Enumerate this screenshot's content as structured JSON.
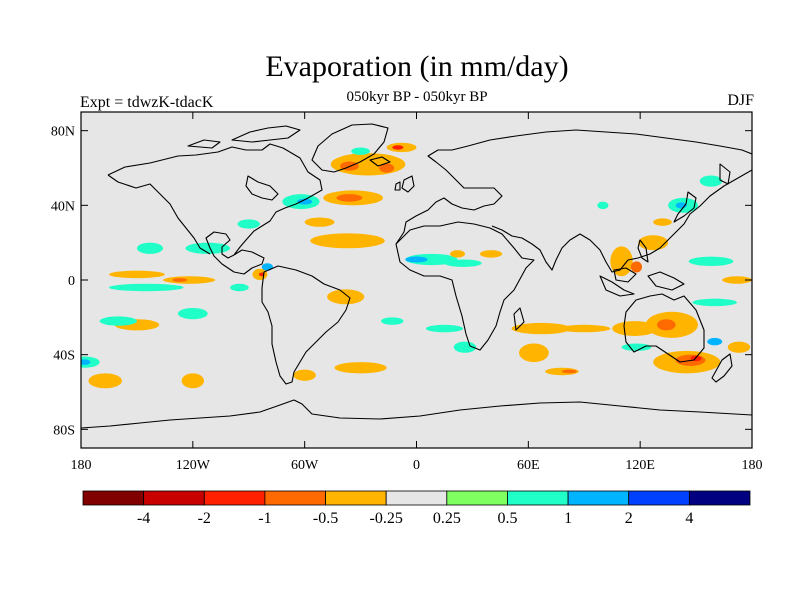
{
  "figure": {
    "title": "Evaporation (in mm/day)",
    "subtitle": "050kyr BP - 050kyr BP",
    "left_label": "Expt = tdwzK-tdacK",
    "right_label": "DJF",
    "background_color": "#e6e6e6"
  },
  "chart_data": {
    "type": "heatmap",
    "projection": "cylindrical-equidistant",
    "xlim": [
      -180,
      180
    ],
    "ylim": [
      -90,
      90
    ],
    "x_ticks": [
      {
        "value": -180,
        "label": "180"
      },
      {
        "value": -120,
        "label": "120W"
      },
      {
        "value": -60,
        "label": "60W"
      },
      {
        "value": 0,
        "label": "0"
      },
      {
        "value": 60,
        "label": "60E"
      },
      {
        "value": 120,
        "label": "120E"
      },
      {
        "value": 180,
        "label": "180"
      }
    ],
    "y_ticks": [
      {
        "value": 80,
        "label": "80N"
      },
      {
        "value": 40,
        "label": "40N"
      },
      {
        "value": 0,
        "label": "0"
      },
      {
        "value": -40,
        "label": "40S"
      },
      {
        "value": -80,
        "label": "80S"
      }
    ],
    "colorbar": {
      "colors": [
        "#800000",
        "#c80000",
        "#ff2000",
        "#ff6a00",
        "#ffb400",
        "#e6e6e6",
        "#80ff60",
        "#20ffc8",
        "#00b4ff",
        "#0040ff",
        "#000080"
      ],
      "labels": [
        {
          "boundary": 1,
          "label": "-4"
        },
        {
          "boundary": 2,
          "label": "-2"
        },
        {
          "boundary": 3,
          "label": "-1"
        },
        {
          "boundary": 4,
          "label": "-0.5"
        },
        {
          "boundary": 5,
          "label": "-0.25"
        },
        {
          "boundary": 6,
          "label": "0.25"
        },
        {
          "boundary": 7,
          "label": "0.5"
        },
        {
          "boundary": 8,
          "label": "1"
        },
        {
          "boundary": 9,
          "label": "2"
        },
        {
          "boundary": 10,
          "label": "4"
        }
      ]
    },
    "anomaly_regions": [
      {
        "lon": -26,
        "lat": 62,
        "rlon": 20,
        "rlat": 6,
        "level": 4
      },
      {
        "lon": -36,
        "lat": 61,
        "rlon": 5,
        "rlat": 2.5,
        "level": 3
      },
      {
        "lon": -16,
        "lat": 60,
        "rlon": 4,
        "rlat": 2.5,
        "level": 3
      },
      {
        "lon": -8,
        "lat": 71,
        "rlon": 8,
        "rlat": 2.5,
        "level": 4
      },
      {
        "lon": -10,
        "lat": 71,
        "rlon": 3,
        "rlat": 1.2,
        "level": 2
      },
      {
        "lon": -30,
        "lat": 69,
        "rlon": 5,
        "rlat": 2,
        "level": 7
      },
      {
        "lon": -34,
        "lat": 44,
        "rlon": 16,
        "rlat": 4,
        "level": 4
      },
      {
        "lon": -36,
        "lat": 44,
        "rlon": 7,
        "rlat": 2,
        "level": 3
      },
      {
        "lon": -62,
        "lat": 42,
        "rlon": 10,
        "rlat": 4,
        "level": 7
      },
      {
        "lon": -60,
        "lat": 42,
        "rlon": 4,
        "rlat": 1.6,
        "level": 8
      },
      {
        "lon": -37,
        "lat": 21,
        "rlon": 20,
        "rlat": 4,
        "level": 4
      },
      {
        "lon": -52,
        "lat": 31,
        "rlon": 8,
        "rlat": 2.5,
        "level": 4
      },
      {
        "lon": -90,
        "lat": 30,
        "rlon": 6,
        "rlat": 2.5,
        "level": 7
      },
      {
        "lon": 8,
        "lat": 11,
        "rlon": 14,
        "rlat": 3,
        "level": 7
      },
      {
        "lon": 0,
        "lat": 11,
        "rlon": 6,
        "rlat": 1.6,
        "level": 8
      },
      {
        "lon": 25,
        "lat": 9,
        "rlon": 10,
        "rlat": 2,
        "level": 7
      },
      {
        "lon": 22,
        "lat": 14,
        "rlon": 4,
        "rlat": 2,
        "level": 4
      },
      {
        "lon": 40,
        "lat": 14,
        "rlon": 6,
        "rlat": 2,
        "level": 4
      },
      {
        "lon": -112,
        "lat": 17,
        "rlon": 12,
        "rlat": 3,
        "level": 7
      },
      {
        "lon": -143,
        "lat": 17,
        "rlon": 7,
        "rlat": 3,
        "level": 7
      },
      {
        "lon": -150,
        "lat": 3,
        "rlon": 15,
        "rlat": 2,
        "level": 4
      },
      {
        "lon": -122,
        "lat": 0,
        "rlon": 14,
        "rlat": 2,
        "level": 4
      },
      {
        "lon": -127,
        "lat": 0,
        "rlon": 4,
        "rlat": 1,
        "level": 3
      },
      {
        "lon": -145,
        "lat": -4,
        "rlon": 20,
        "rlat": 2,
        "level": 7
      },
      {
        "lon": -95,
        "lat": -4,
        "rlon": 5,
        "rlat": 2,
        "level": 7
      },
      {
        "lon": -84,
        "lat": 3,
        "rlon": 4,
        "rlat": 3,
        "level": 4
      },
      {
        "lon": -83,
        "lat": 3,
        "rlon": 1.5,
        "rlat": 1,
        "level": 2
      },
      {
        "lon": -80,
        "lat": 7,
        "rlon": 3,
        "rlat": 2,
        "level": 8
      },
      {
        "lon": -38,
        "lat": -9,
        "rlon": 10,
        "rlat": 4,
        "level": 4
      },
      {
        "lon": -150,
        "lat": -24,
        "rlon": 12,
        "rlat": 3,
        "level": 4
      },
      {
        "lon": -120,
        "lat": -18,
        "rlon": 8,
        "rlat": 3,
        "level": 7
      },
      {
        "lon": -160,
        "lat": -22,
        "rlon": 10,
        "rlat": 2.5,
        "level": 7
      },
      {
        "lon": -178,
        "lat": -44,
        "rlon": 8,
        "rlat": 3,
        "level": 7
      },
      {
        "lon": -178,
        "lat": -44,
        "rlon": 3,
        "rlat": 1.5,
        "level": 8
      },
      {
        "lon": -167,
        "lat": -54,
        "rlon": 9,
        "rlat": 4,
        "level": 4
      },
      {
        "lon": -120,
        "lat": -54,
        "rlon": 6,
        "rlat": 4,
        "level": 4
      },
      {
        "lon": -30,
        "lat": -47,
        "rlon": 14,
        "rlat": 3,
        "level": 4
      },
      {
        "lon": -60,
        "lat": -51,
        "rlon": 6,
        "rlat": 3,
        "level": 4
      },
      {
        "lon": -13,
        "lat": -22,
        "rlon": 6,
        "rlat": 2,
        "level": 7
      },
      {
        "lon": 15,
        "lat": -26,
        "rlon": 10,
        "rlat": 2,
        "level": 7
      },
      {
        "lon": 67,
        "lat": -26,
        "rlon": 16,
        "rlat": 3,
        "level": 4
      },
      {
        "lon": 90,
        "lat": -26,
        "rlon": 14,
        "rlat": 2,
        "level": 4
      },
      {
        "lon": 117,
        "lat": -26,
        "rlon": 12,
        "rlat": 4,
        "level": 4
      },
      {
        "lon": 137,
        "lat": -24,
        "rlon": 14,
        "rlat": 7,
        "level": 4
      },
      {
        "lon": 134,
        "lat": -24,
        "rlon": 5,
        "rlat": 3,
        "level": 3
      },
      {
        "lon": 145,
        "lat": -44,
        "rlon": 18,
        "rlat": 6,
        "level": 4
      },
      {
        "lon": 147,
        "lat": -43,
        "rlon": 8,
        "rlat": 3,
        "level": 3
      },
      {
        "lon": 150,
        "lat": -42,
        "rlon": 3,
        "rlat": 1.5,
        "level": 2
      },
      {
        "lon": 118,
        "lat": -36,
        "rlon": 8,
        "rlat": 2,
        "level": 7
      },
      {
        "lon": 160,
        "lat": -33,
        "rlon": 4,
        "rlat": 2,
        "level": 8
      },
      {
        "lon": 63,
        "lat": -39,
        "rlon": 8,
        "rlat": 5,
        "level": 4
      },
      {
        "lon": 78,
        "lat": -49,
        "rlon": 9,
        "rlat": 2,
        "level": 4
      },
      {
        "lon": 82,
        "lat": -49,
        "rlon": 4,
        "rlat": 1,
        "level": 3
      },
      {
        "lon": 26,
        "lat": -36,
        "rlon": 6,
        "rlat": 3,
        "level": 7
      },
      {
        "lon": 173,
        "lat": -36,
        "rlon": 6,
        "rlat": 3,
        "level": 4
      },
      {
        "lon": 110,
        "lat": 10,
        "rlon": 6,
        "rlat": 8,
        "level": 4
      },
      {
        "lon": 118,
        "lat": 7,
        "rlon": 3,
        "rlat": 3,
        "level": 3
      },
      {
        "lon": 127,
        "lat": 20,
        "rlon": 8,
        "rlat": 4,
        "level": 4
      },
      {
        "lon": 143,
        "lat": 40,
        "rlon": 8,
        "rlat": 4,
        "level": 7
      },
      {
        "lon": 142,
        "lat": 40,
        "rlon": 3,
        "rlat": 1.6,
        "level": 8
      },
      {
        "lon": 158,
        "lat": 53,
        "rlon": 6,
        "rlat": 3,
        "level": 7
      },
      {
        "lon": 132,
        "lat": 31,
        "rlon": 5,
        "rlat": 2,
        "level": 4
      },
      {
        "lon": 158,
        "lat": 10,
        "rlon": 12,
        "rlat": 2.5,
        "level": 7
      },
      {
        "lon": 172,
        "lat": 0,
        "rlon": 8,
        "rlat": 2,
        "level": 4
      },
      {
        "lon": 160,
        "lat": -12,
        "rlon": 12,
        "rlat": 2,
        "level": 7
      },
      {
        "lon": 100,
        "lat": 40,
        "rlon": 3,
        "rlat": 2,
        "level": 7
      }
    ]
  }
}
